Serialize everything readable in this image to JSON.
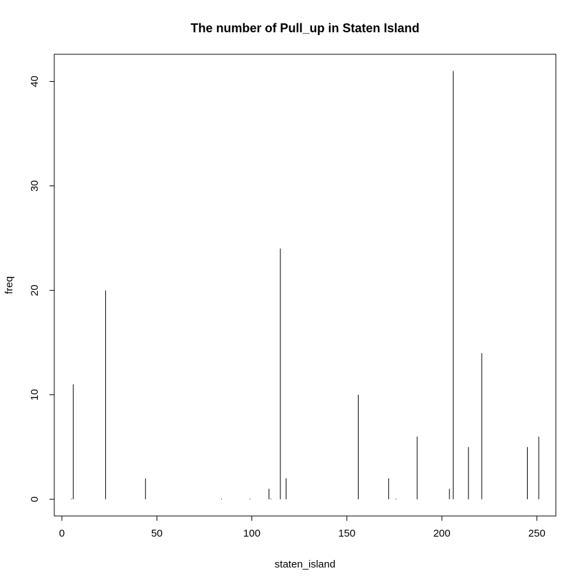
{
  "chart_data": {
    "type": "bar",
    "title": "The number of Pull_up in Staten Island",
    "xlabel": "staten_island",
    "ylabel": "freq",
    "xlim": [
      -4,
      260
    ],
    "ylim": [
      -1.6,
      42.6
    ],
    "x_ticks": [
      0,
      50,
      100,
      150,
      200,
      250
    ],
    "y_ticks": [
      0,
      10,
      20,
      30,
      40
    ],
    "grid": false,
    "legend": "none",
    "color": "#000000",
    "points": [
      {
        "x": 5,
        "y": 0
      },
      {
        "x": 6,
        "y": 11
      },
      {
        "x": 23,
        "y": 20
      },
      {
        "x": 44,
        "y": 2
      },
      {
        "x": 84,
        "y": 0
      },
      {
        "x": 99,
        "y": 0
      },
      {
        "x": 109,
        "y": 1
      },
      {
        "x": 110,
        "y": 0
      },
      {
        "x": 115,
        "y": 24
      },
      {
        "x": 118,
        "y": 2
      },
      {
        "x": 156,
        "y": 10
      },
      {
        "x": 172,
        "y": 2
      },
      {
        "x": 176,
        "y": 0
      },
      {
        "x": 187,
        "y": 6
      },
      {
        "x": 204,
        "y": 1
      },
      {
        "x": 206,
        "y": 41
      },
      {
        "x": 214,
        "y": 5
      },
      {
        "x": 221,
        "y": 14
      },
      {
        "x": 245,
        "y": 5
      },
      {
        "x": 251,
        "y": 6
      }
    ]
  }
}
